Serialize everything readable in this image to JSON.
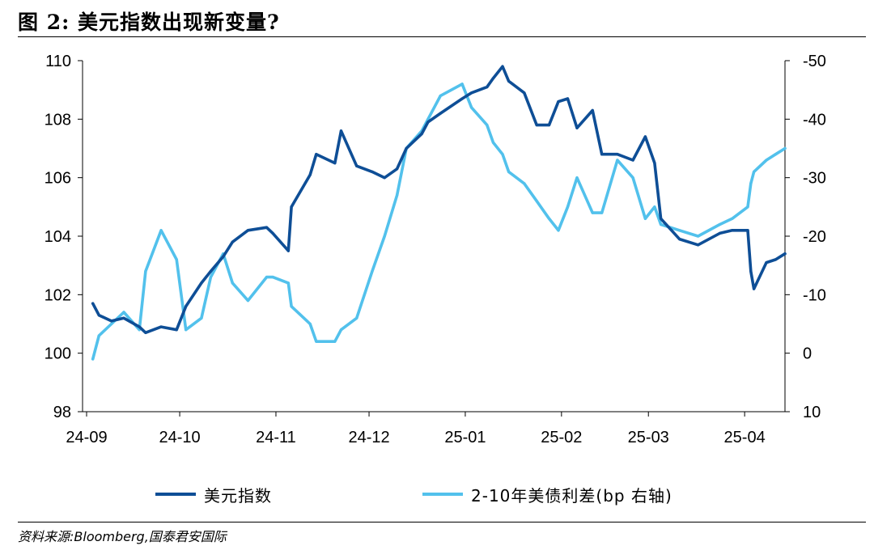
{
  "title": "图 2:  美元指数出现新变量?",
  "source": "资料来源:Bloomberg,国泰君安国际",
  "colors": {
    "dxy": "#0e4e96",
    "spread": "#52c1ec",
    "axis": "#000000"
  },
  "chart_data": {
    "type": "line",
    "title": "",
    "x": [
      "2024-09-03",
      "2024-09-05",
      "2024-09-09",
      "2024-09-13",
      "2024-09-18",
      "2024-09-20",
      "2024-09-25",
      "2024-09-30",
      "2024-10-03",
      "2024-10-08",
      "2024-10-11",
      "2024-10-15",
      "2024-10-18",
      "2024-10-23",
      "2024-10-29",
      "2024-10-31",
      "2024-11-05",
      "2024-11-06",
      "2024-11-12",
      "2024-11-14",
      "2024-11-20",
      "2024-11-22",
      "2024-11-27",
      "2024-12-02",
      "2024-12-06",
      "2024-12-10",
      "2024-12-13",
      "2024-12-18",
      "2024-12-20",
      "2024-12-24",
      "2024-12-31",
      "2025-01-03",
      "2025-01-08",
      "2025-01-10",
      "2025-01-13",
      "2025-01-15",
      "2025-01-20",
      "2025-01-24",
      "2025-01-28",
      "2025-01-31",
      "2025-02-03",
      "2025-02-06",
      "2025-02-11",
      "2025-02-14",
      "2025-02-19",
      "2025-02-24",
      "2025-02-28",
      "2025-03-03",
      "2025-03-05",
      "2025-03-11",
      "2025-03-17",
      "2025-03-24",
      "2025-03-28",
      "2025-04-02",
      "2025-04-03",
      "2025-04-04",
      "2025-04-08",
      "2025-04-11",
      "2025-04-14"
    ],
    "series": [
      {
        "name": "美元指数",
        "axis": "left",
        "values": [
          101.7,
          101.3,
          101.1,
          101.2,
          100.9,
          100.7,
          100.9,
          100.8,
          101.6,
          102.4,
          102.8,
          103.3,
          103.8,
          104.2,
          104.3,
          104.1,
          103.5,
          105.0,
          106.1,
          106.8,
          106.5,
          107.6,
          106.4,
          106.2,
          106.0,
          106.3,
          107.0,
          107.5,
          107.9,
          108.2,
          108.7,
          108.9,
          109.1,
          109.4,
          109.8,
          109.3,
          108.9,
          107.8,
          107.8,
          108.6,
          108.7,
          107.7,
          108.3,
          106.8,
          106.8,
          106.6,
          107.4,
          106.5,
          104.6,
          103.9,
          103.7,
          104.1,
          104.2,
          104.2,
          102.8,
          102.2,
          103.1,
          103.2,
          103.4
        ]
      },
      {
        "name": "2-10年美债利差(bp 右轴)",
        "axis": "right",
        "values": [
          1,
          -3,
          -5,
          -7,
          -4,
          -14,
          -21,
          -16,
          -4,
          -6,
          -13,
          -17,
          -12,
          -9,
          -13,
          -13,
          -12,
          -8,
          -5,
          -2,
          -2,
          -4,
          -6,
          -14,
          -20,
          -27,
          -35,
          -38,
          -40,
          -44,
          -46,
          -42,
          -39,
          -36,
          -34,
          -31,
          -29,
          -26,
          -23,
          -21,
          -25,
          -30,
          -24,
          -24,
          -33,
          -30,
          -23,
          -25,
          -22,
          -21,
          -20,
          -22,
          -23,
          -25,
          -29,
          -31,
          -33,
          -34,
          -35
        ]
      }
    ],
    "x_ticks": [
      "24-09",
      "24-10",
      "24-11",
      "24-12",
      "25-01",
      "25-02",
      "25-03",
      "25-04"
    ],
    "y_left": {
      "ticks": [
        "110",
        "108",
        "106",
        "104",
        "102",
        "100",
        "98"
      ],
      "lim": [
        98,
        110
      ]
    },
    "y_right": {
      "ticks": [
        "-50",
        "-40",
        "-30",
        "-20",
        "-10",
        "0",
        "10"
      ],
      "lim": [
        10,
        -50
      ],
      "inverted": true
    },
    "grid": false,
    "legend_position": "bottom"
  }
}
